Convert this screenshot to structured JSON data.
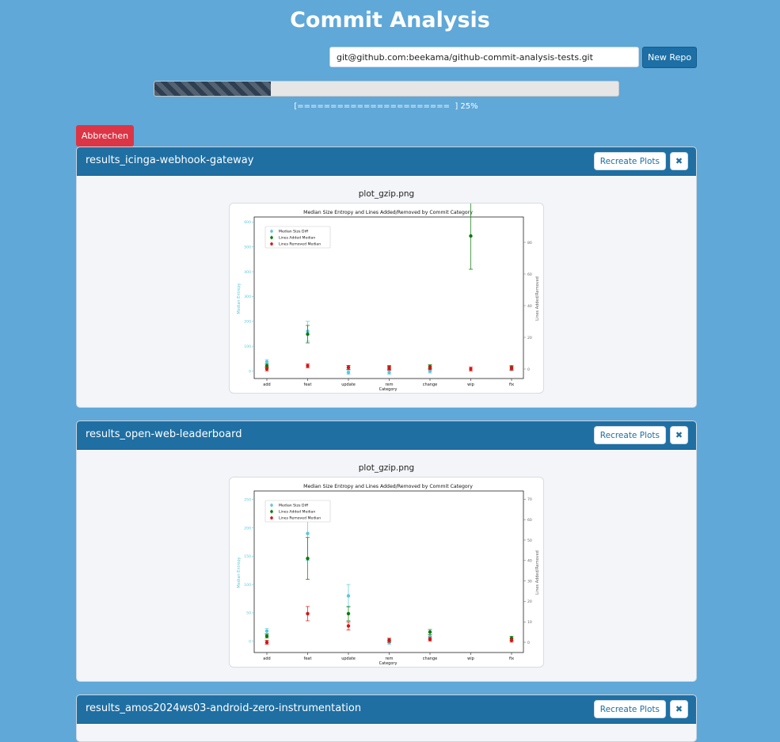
{
  "app": {
    "title": "Commit Analysis",
    "repo_input_value": "git@github.com:beekama/github-commit-analysis-tests.git",
    "new_repo_label": "New Repo",
    "progress_fraction": 0.25,
    "progress_text": "[=======================  ] 25%",
    "abort_label": "Abbrechen"
  },
  "results": [
    {
      "title": "results_icinga-webhook-gateway",
      "recreate_label": "Recreate Plots",
      "close_icon_glyph": "✖",
      "plot_filename": "plot_gzip.png"
    },
    {
      "title": "results_open-web-leaderboard",
      "recreate_label": "Recreate Plots",
      "close_icon_glyph": "✖",
      "plot_filename": "plot_gzip.png"
    },
    {
      "title": "results_amos2024ws03-android-zero-instrumentation",
      "recreate_label": "Recreate Plots",
      "close_icon_glyph": "✖"
    }
  ],
  "chart_data": [
    {
      "type": "scatter",
      "title": "Median Size Entropy and Lines Added/Removed by Commit Category",
      "xlabel": "Category",
      "ylabel": "Median Entropy",
      "y2label": "Lines Added/Removed",
      "categories": [
        "add",
        "feat",
        "update",
        "rem",
        "change",
        "wip",
        "fix"
      ],
      "ylim": [
        -30,
        620
      ],
      "y_ticks": [
        0,
        100,
        200,
        300,
        400,
        500,
        600
      ],
      "y2lim": [
        -6,
        96
      ],
      "y2_ticks": [
        0,
        20,
        40,
        60,
        80
      ],
      "legend_position": "top-left",
      "series": [
        {
          "name": "Median Size Diff",
          "axis": "left",
          "color": "#5cc8d8",
          "values": [
            37,
            160,
            -5,
            -5,
            0,
            null,
            8
          ]
        },
        {
          "name": "Lines Added Median",
          "axis": "right",
          "color": "#0a7a0a",
          "values": [
            2,
            22,
            1,
            1,
            1.5,
            84,
            1
          ]
        },
        {
          "name": "Lines Removed Median",
          "axis": "right",
          "color": "#dd1111",
          "values": [
            0,
            2,
            1,
            0.5,
            0.8,
            0,
            0.5
          ]
        }
      ]
    },
    {
      "type": "scatter",
      "title": "Median Size Entropy and Lines Added/Removed by Commit Category",
      "xlabel": "Category",
      "ylabel": "Median Entropy",
      "y2label": "Lines Added/Removed",
      "categories": [
        "add",
        "feat",
        "update",
        "rem",
        "change",
        "wip",
        "fix"
      ],
      "ylim": [
        -20,
        265
      ],
      "y_ticks": [
        0,
        50,
        100,
        150,
        200,
        250
      ],
      "y2lim": [
        -5,
        74
      ],
      "y2_ticks": [
        0,
        10,
        20,
        30,
        40,
        50,
        60,
        70
      ],
      "legend_position": "top-left",
      "series": [
        {
          "name": "Median Size Diff",
          "axis": "left",
          "color": "#5cc8d8",
          "values": [
            18,
            190,
            80,
            -2,
            8,
            null,
            2
          ]
        },
        {
          "name": "Lines Added Median",
          "axis": "right",
          "color": "#0a7a0a",
          "values": [
            3,
            41,
            14,
            1,
            5,
            null,
            2
          ]
        },
        {
          "name": "Lines Removed Median",
          "axis": "right",
          "color": "#dd1111",
          "values": [
            0,
            14,
            8,
            1,
            1.5,
            null,
            1
          ]
        }
      ]
    }
  ]
}
